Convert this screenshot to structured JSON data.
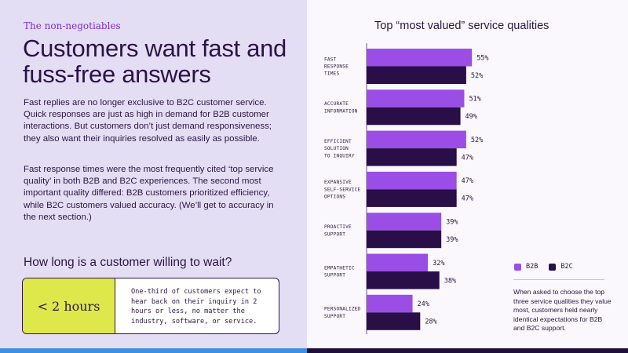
{
  "left": {
    "eyebrow": "The non-negotiables",
    "headline": "Customers want fast and fuss-free answers",
    "paragraph1": "Fast replies are no longer exclusive to B2C customer service. Quick responses are just as high in demand for B2B customer interactions. But customers don’t just demand responsiveness; they also want their inquiries resolved as easily as possible.",
    "paragraph2": "Fast response times were the most frequently cited ‘top service quality’ in both B2B and B2C experiences. The second most important quality differed: B2B customers prioritized efficiency, while B2C customers valued accuracy. (We’ll get to accuracy in the next section.)",
    "wait_title": "How long is a customer willing to wait?",
    "wait_value": "< 2 hours",
    "wait_text": "One-third of customers expect to hear back on their inquiry in 2 hours or less, no matter the industry, software, or service."
  },
  "legend": {
    "b2b_label": "B2B",
    "b2c_label": "B2C"
  },
  "footnote": "When asked to choose the top three service qualities they value most, customers held nearly identical expectations for B2B and B2C support.",
  "colors": {
    "left_bg": "#e4def5",
    "accent_purple": "#9b4ee6",
    "dark_purple": "#2a0e47",
    "highlight_yellow": "#dfe84a",
    "bar_blue": "#3d8fe0"
  },
  "chart_data": {
    "type": "bar",
    "orientation": "horizontal",
    "title": "Top “most valued” service qualities",
    "categories": [
      [
        "FAST",
        "RESPONSE",
        "TIMES"
      ],
      [
        "ACCURATE",
        "INFORMATION"
      ],
      [
        "EFFICIENT",
        "SOLUTION",
        "TO INQUIRY"
      ],
      [
        "EXPANSIVE",
        "SELF-SERVICE",
        "OPTIONS"
      ],
      [
        "PROACTIVE",
        "SUPPORT"
      ],
      [
        "EMPATHETIC",
        "SUPPORT"
      ],
      [
        "PERSONALIZED",
        "SUPPORT"
      ]
    ],
    "series": [
      {
        "name": "B2B",
        "color": "#9b4ee6",
        "values": [
          55,
          51,
          52,
          47,
          39,
          32,
          24
        ],
        "labels": [
          "55%",
          "51%",
          "52%",
          "47%",
          "39%",
          "32%",
          "24%"
        ]
      },
      {
        "name": "B2C",
        "color": "#2a0e47",
        "values": [
          52,
          49,
          47,
          47,
          39,
          38,
          28
        ],
        "labels": [
          "52%",
          "49%",
          "47%",
          "47%",
          "39%",
          "38%",
          "28%"
        ]
      }
    ],
    "xlim": [
      0,
      60
    ],
    "legend_position": "bottom-right",
    "grid": false
  }
}
